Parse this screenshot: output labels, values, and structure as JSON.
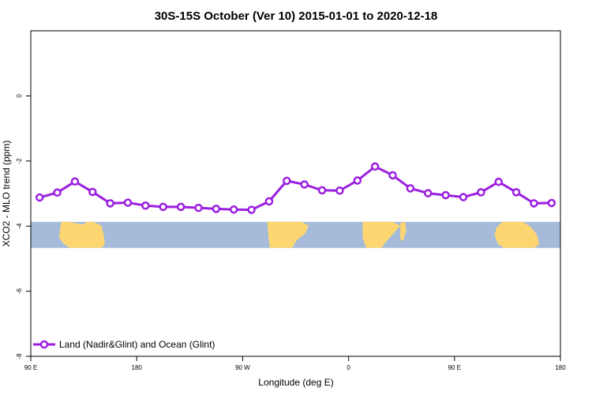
{
  "chart_data": {
    "type": "line",
    "title": "30S-15S October (Ver 10)   2015-01-01 to 2020-12-18",
    "xlabel": "Longitude (deg E)",
    "ylabel": "XCO2 - MLO trend (ppm)",
    "xlim": [
      90,
      540
    ],
    "ylim": [
      -8,
      2
    ],
    "x_ticks": [
      {
        "value": 90,
        "label": "90 E"
      },
      {
        "value": 180,
        "label": "180"
      },
      {
        "value": 270,
        "label": "90 W"
      },
      {
        "value": 360,
        "label": "0"
      },
      {
        "value": 450,
        "label": "90 E"
      },
      {
        "value": 540,
        "label": "180"
      }
    ],
    "y_ticks": [
      {
        "value": 0,
        "label": "0"
      },
      {
        "value": -2,
        "label": "-2"
      },
      {
        "value": -4,
        "label": "-4"
      },
      {
        "value": -6,
        "label": "-6"
      },
      {
        "value": -8,
        "label": "-8"
      }
    ],
    "series": [
      {
        "name": "Land (Nadir&Glint) and Ocean (Glint)",
        "color": "#9b1fe0",
        "x": [
          97.5,
          112.5,
          127.5,
          142.5,
          157.5,
          172.5,
          187.5,
          202.5,
          217.5,
          232.5,
          247.5,
          262.5,
          277.5,
          292.5,
          307.5,
          322.5,
          337.5,
          352.5,
          367.5,
          382.5,
          397.5,
          412.5,
          427.5,
          442.5,
          457.5,
          472.5,
          487.5,
          502.5,
          517.5,
          532.5
        ],
        "y": [
          -3.12,
          -2.97,
          -2.63,
          -2.95,
          -3.3,
          -3.28,
          -3.37,
          -3.41,
          -3.41,
          -3.44,
          -3.47,
          -3.49,
          -3.5,
          -3.24,
          -2.61,
          -2.72,
          -2.9,
          -2.91,
          -2.6,
          -2.17,
          -2.44,
          -2.84,
          -2.99,
          -3.05,
          -3.11,
          -2.96,
          -2.64,
          -2.96,
          -3.3,
          -3.29
        ]
      }
    ],
    "legend_position": "bottom-left",
    "map_strip": {
      "ocean_color": "#a5bbd9",
      "land_color": "#fdd672",
      "y_range": [
        -3.87,
        -4.67
      ]
    }
  }
}
